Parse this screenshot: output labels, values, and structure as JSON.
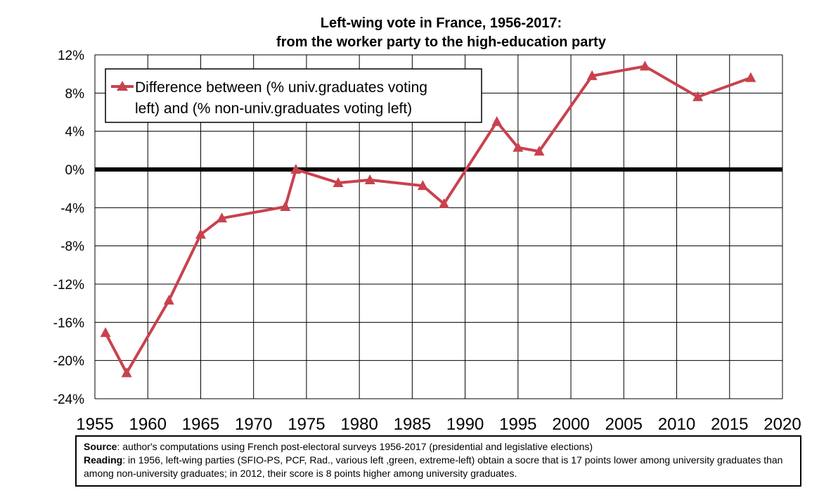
{
  "chart_data": {
    "type": "line",
    "title": "Left-wing vote in France, 1956-2017:",
    "subtitle": "from the worker party to the high-education party",
    "xlabel": "",
    "ylabel": "",
    "xlim": [
      1955,
      2020
    ],
    "ylim": [
      -24,
      12
    ],
    "x_ticks": [
      "1955",
      "1960",
      "1965",
      "1970",
      "1975",
      "1980",
      "1985",
      "1990",
      "1995",
      "2000",
      "2005",
      "2010",
      "2015",
      "2020"
    ],
    "y_ticks": [
      "12%",
      "8%",
      "4%",
      "0%",
      "-4%",
      "-8%",
      "-12%",
      "-16%",
      "-20%",
      "-24%"
    ],
    "grid": true,
    "legend_position": "top-left",
    "series": [
      {
        "name": "Difference between (% univ.graduates voting left) and (% non-univ.graduates voting left)",
        "legend_line1": "Difference between (% univ.graduates voting",
        "legend_line2": "left) and (% non-univ.graduates voting left)",
        "color": "#c8424e",
        "marker": "triangle",
        "x": [
          1956,
          1958,
          1962,
          1965,
          1967,
          1973,
          1974,
          1978,
          1981,
          1986,
          1988,
          1993,
          1995,
          1997,
          2002,
          2007,
          2012,
          2017
        ],
        "y": [
          -17.1,
          -21.3,
          -13.7,
          -6.8,
          -5.1,
          -3.9,
          0.0,
          -1.4,
          -1.1,
          -1.7,
          -3.6,
          5.0,
          2.3,
          1.9,
          9.8,
          10.8,
          7.6,
          9.6
        ]
      }
    ]
  },
  "note": {
    "source_label": "Source",
    "source_text": ": author's computations using French post-electoral surveys 1956-2017 (presidential and legislative elections)",
    "reading_label": "Reading",
    "reading_text": ": in 1956, left-wing parties (SFIO-PS, PCF, Rad., various left ,green, extreme-left) obtain a socre that is 17 points lower among university graduates than among non-university graduates; in 2012, their score is 8 points higher among university graduates."
  }
}
